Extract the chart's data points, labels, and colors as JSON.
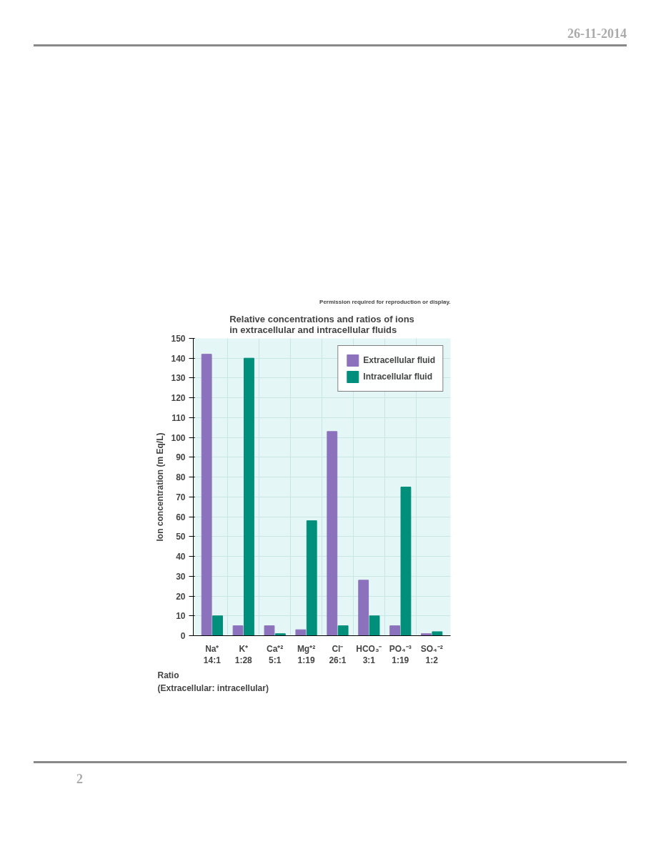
{
  "chart_data": {
    "type": "bar",
    "title": "Relative concentrations and ratios of ions\nin extracellular and intracellular fluids",
    "ylabel": "Ion concentration (m Eq/L)",
    "categories": [
      "Na⁺\n14:1",
      "K⁺\n1:28",
      "Ca⁺²\n5:1",
      "Mg⁺²\n1:19",
      "Cl⁻\n26:1",
      "HCO₃⁻\n3:1",
      "PO₄⁻³\n1:19",
      "SO₄⁻²\n1:2"
    ],
    "series": [
      {
        "name": "Extracellular fluid",
        "color": "#8c72bd",
        "values": [
          142,
          5,
          5,
          3,
          103,
          28,
          5,
          1
        ]
      },
      {
        "name": "Intracellular fluid",
        "color": "#008f7a",
        "values": [
          10,
          140,
          1,
          58,
          5,
          10,
          75,
          2
        ]
      }
    ],
    "ylim": [
      0,
      150
    ],
    "yticks": [
      0,
      10,
      20,
      30,
      40,
      50,
      60,
      70,
      80,
      90,
      100,
      110,
      120,
      130,
      140,
      150
    ],
    "grid": true,
    "legend": "top right",
    "annotations": [
      "Permission required for reproduction or display.",
      "Ratio",
      "(Extracellular: intracellular)",
      "26-11-2014",
      "2"
    ]
  }
}
